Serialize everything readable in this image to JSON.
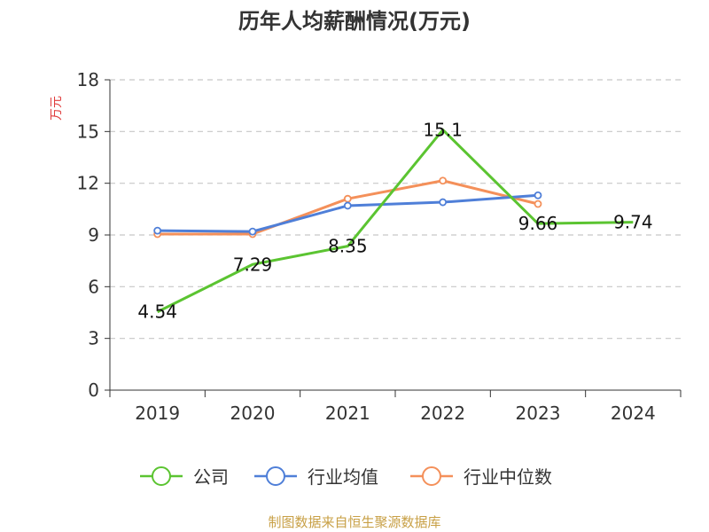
{
  "chart_data": {
    "type": "line",
    "title": "历年人均薪酬情况(万元)",
    "ylabel": "万元",
    "xlabel": "",
    "categories": [
      "2019",
      "2020",
      "2021",
      "2022",
      "2023",
      "2024"
    ],
    "ylim": [
      0,
      18
    ],
    "yticks": [
      0,
      3,
      6,
      9,
      12,
      15,
      18
    ],
    "grid": true,
    "legend_position": "bottom",
    "series": [
      {
        "name": "公司",
        "color": "#5bc431",
        "values": [
          4.54,
          7.29,
          8.35,
          15.1,
          9.66,
          9.74
        ],
        "labels": [
          "4.54",
          "7.29",
          "8.35",
          "15.1",
          "9.66",
          "9.74"
        ]
      },
      {
        "name": "行业均值",
        "color": "#4f7fd8",
        "values": [
          9.25,
          9.2,
          10.7,
          10.9,
          11.3,
          null
        ]
      },
      {
        "name": "行业中位数",
        "color": "#f4905a",
        "values": [
          9.05,
          9.05,
          11.1,
          12.15,
          10.8,
          null
        ]
      }
    ]
  },
  "footer": {
    "source": "制图数据来自恒生聚源数据库"
  }
}
